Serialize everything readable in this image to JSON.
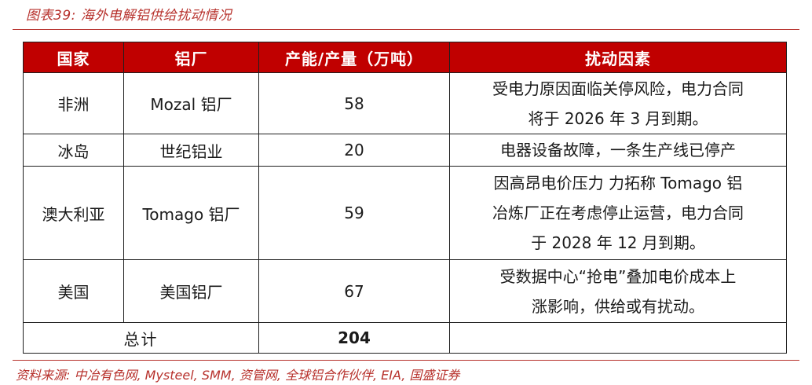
{
  "figure": {
    "title": "图表39: 海外电解铝供给扰动情况",
    "source": "资料来源: 中冶有色网, Mysteel, SMM, 资管网, 全球铝合作伙伴, EIA, 国盛证券"
  },
  "table": {
    "headers": [
      "国家",
      "铝厂",
      "产能/产量（万吨）",
      "扰动因素"
    ],
    "rows": [
      {
        "country": "非洲",
        "plant": "Mozal 铝厂",
        "capacity": "58",
        "factor_lines": [
          "受电力原因面临关停风险，电力合同",
          "将于 2026 年 3 月到期。"
        ]
      },
      {
        "country": "冰岛",
        "plant": "世纪铝业",
        "capacity": "20",
        "factor_lines": [
          "电器设备故障，一条生产线已停产"
        ]
      },
      {
        "country": "澳大利亚",
        "plant": "Tomago 铝厂",
        "capacity": "59",
        "factor_lines": [
          "因高昂电价压力 力拓称 Tomago 铝",
          "冶炼厂正在考虑停止运营，电力合同",
          "于 2028 年 12 月到期。"
        ]
      },
      {
        "country": "美国",
        "plant": "美国铝厂",
        "capacity": "67",
        "factor_lines": [
          "受数据中心“抢电”叠加电价成本上",
          "涨影响，供给或有扰动。"
        ]
      }
    ],
    "total": {
      "label": "总计",
      "value": "204"
    }
  }
}
